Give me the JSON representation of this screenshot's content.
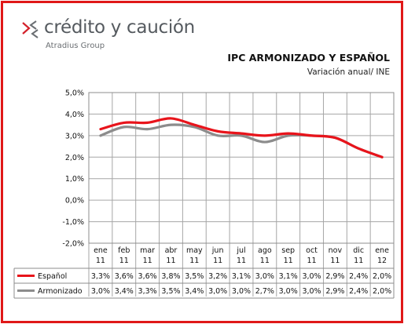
{
  "brand": {
    "name": "crédito y caución",
    "subtitle": "Atradius Group",
    "logo_icon": "chevron-arrows-icon",
    "accent": "#d3202a"
  },
  "chart_data": {
    "type": "line",
    "title": "IPC ARMONIZADO Y ESPAÑOL",
    "subtitle": "Variación anual/ INE",
    "categories": [
      "ene 11",
      "feb 11",
      "mar 11",
      "abr 11",
      "may 11",
      "jun 11",
      "jul 11",
      "ago 11",
      "sep 11",
      "oct 11",
      "nov 11",
      "dic 11",
      "ene 12"
    ],
    "category_lines": [
      [
        "ene",
        "11"
      ],
      [
        "feb",
        "11"
      ],
      [
        "mar",
        "11"
      ],
      [
        "abr",
        "11"
      ],
      [
        "may",
        "11"
      ],
      [
        "jun",
        "11"
      ],
      [
        "jul",
        "11"
      ],
      [
        "ago",
        "11"
      ],
      [
        "sep",
        "11"
      ],
      [
        "oct",
        "11"
      ],
      [
        "nov",
        "11"
      ],
      [
        "dic",
        "11"
      ],
      [
        "ene",
        "12"
      ]
    ],
    "ylim": [
      -2.0,
      5.0
    ],
    "yticks": [
      -2.0,
      -1.0,
      0.0,
      1.0,
      2.0,
      3.0,
      4.0,
      5.0
    ],
    "ytick_labels": [
      "-2,0%",
      "-1,0%",
      "0,0%",
      "1,0%",
      "2,0%",
      "3,0%",
      "4,0%",
      "5,0%"
    ],
    "grid": true,
    "legend": "data-table-below",
    "series": [
      {
        "name": "Español",
        "color": "#e8141b",
        "values": [
          3.3,
          3.6,
          3.6,
          3.8,
          3.5,
          3.2,
          3.1,
          3.0,
          3.1,
          3.0,
          2.9,
          2.4,
          2.0
        ],
        "labels": [
          "3,3%",
          "3,6%",
          "3,6%",
          "3,8%",
          "3,5%",
          "3,2%",
          "3,1%",
          "3,0%",
          "3,1%",
          "3,0%",
          "2,9%",
          "2,4%",
          "2,0%"
        ]
      },
      {
        "name": "Armonizado",
        "color": "#8c8c8c",
        "values": [
          3.0,
          3.4,
          3.3,
          3.5,
          3.4,
          3.0,
          3.0,
          2.7,
          3.0,
          3.0,
          2.9,
          2.4,
          2.0
        ],
        "labels": [
          "3,0%",
          "3,4%",
          "3,3%",
          "3,5%",
          "3,4%",
          "3,0%",
          "3,0%",
          "2,7%",
          "3,0%",
          "3,0%",
          "2,9%",
          "2,4%",
          "2,0%"
        ]
      }
    ]
  }
}
